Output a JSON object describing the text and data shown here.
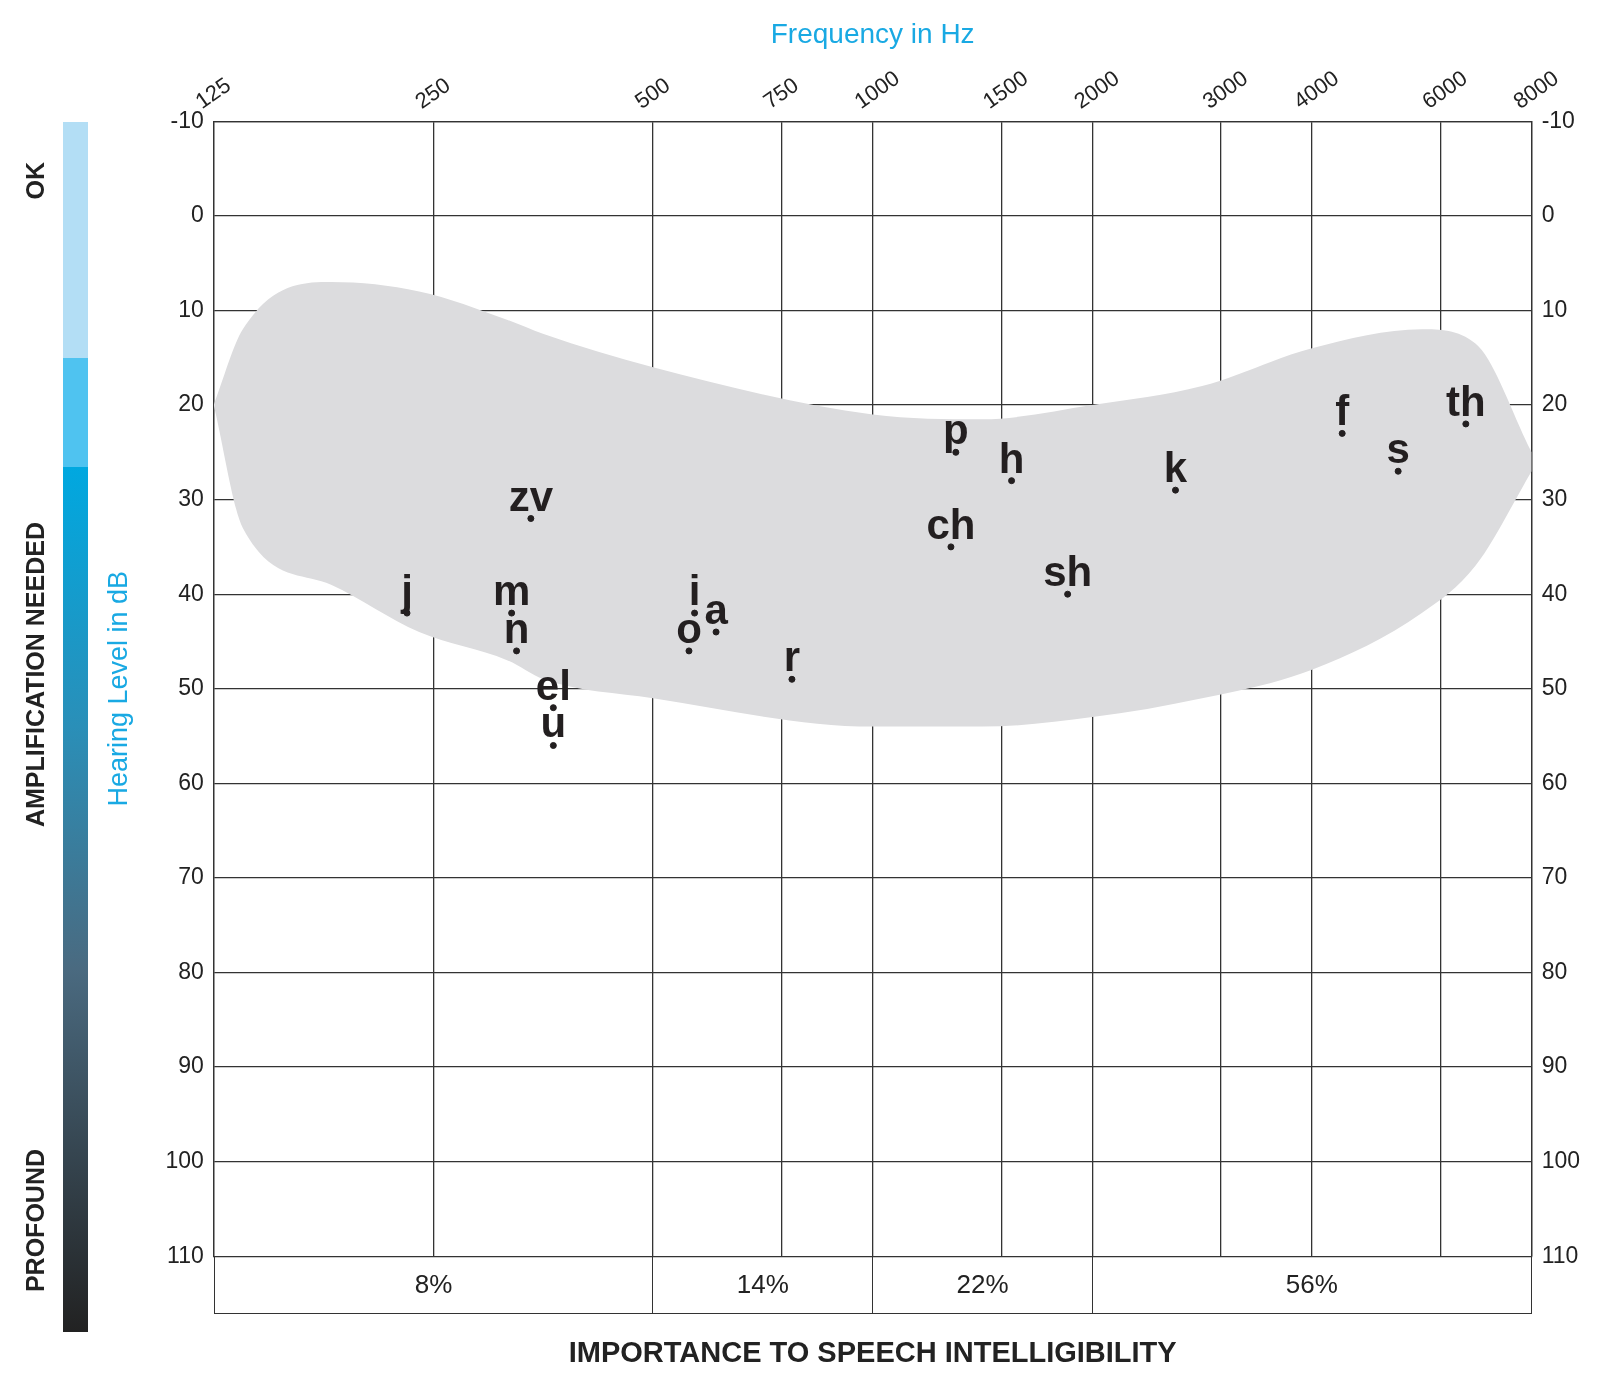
{
  "chart_data": [
    {
      "type": "scatter",
      "xlabel": "Frequency in Hz",
      "ylabel": "Hearing Level in dB",
      "log": "x",
      "grid": true,
      "xlim": [
        125,
        8000
      ],
      "xticks": [
        125,
        250,
        500,
        750,
        1000,
        1500,
        2000,
        3000,
        4000,
        6000,
        8000
      ],
      "ylim": [
        110,
        -10
      ],
      "yticks": [
        -10,
        0,
        10,
        20,
        30,
        40,
        50,
        60,
        70,
        80,
        90,
        100,
        110
      ],
      "y2lim": [
        110,
        -10
      ],
      "y2ticks": [
        -10,
        0,
        10,
        20,
        30,
        40,
        50,
        60,
        70,
        80,
        90,
        100,
        110
      ],
      "series": [
        {
          "type": "area",
          "color": "#dcdcde",
          "x": [
            125,
            137,
            181,
            239,
            316,
            354,
            500,
            1000,
            1414,
            2000,
            2828,
            4000,
            5657,
            6700,
            8000
          ],
          "values": [
            null,
            null,
            null,
            null,
            null,
            null,
            null,
            null,
            null,
            null,
            null,
            null,
            null,
            null,
            null
          ],
          "lower": [
            20,
            12,
            7,
            8,
            11,
            12.5,
            16,
            21,
            21.5,
            20,
            18,
            14,
            12,
            13.5,
            25
          ],
          "upper": [
            20,
            33,
            39,
            44,
            47,
            49,
            51,
            54,
            54,
            53,
            51,
            48,
            42,
            37,
            27
          ]
        },
        {
          "color": "#231f20",
          "marker": "circle",
          "x": [
            230,
            340,
            320,
            325,
            365,
            365,
            570,
            610,
            560,
            775,
            1300,
            1550,
            1280,
            1850,
            2600,
            4400,
            5250,
            6500
          ],
          "values": [
            42,
            32,
            42,
            46,
            52,
            56,
            42,
            44,
            46,
            49,
            25,
            28,
            35,
            40,
            29,
            23,
            27,
            22
          ],
          "value_labels": [
            "j",
            "zv",
            "m",
            "n",
            "el",
            "u",
            "i",
            "a",
            "o",
            "r",
            "p",
            "h",
            "ch",
            "sh",
            "k",
            "f",
            "s",
            "th"
          ]
        }
      ],
      "annotations": [
        "OK",
        "AMPLIFICATION NEEDED",
        "PROFOUND"
      ]
    },
    {
      "type": "other",
      "xlabel": "IMPORTANCE TO SPEECH INTELLIGIBILITY",
      "annotations": [
        "8%",
        "14%",
        "22%",
        "56%"
      ]
    }
  ]
}
